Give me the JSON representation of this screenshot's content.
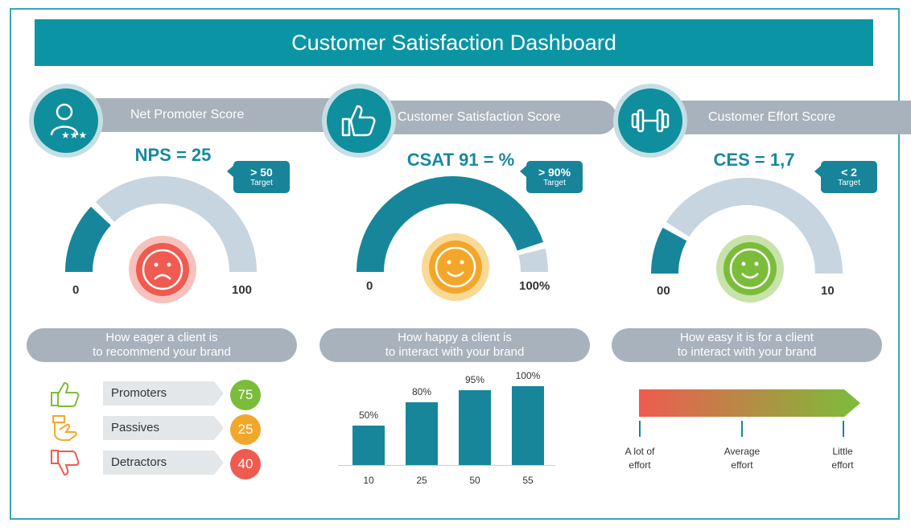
{
  "title": "Customer Satisfaction Dashboard",
  "panels": {
    "nps": {
      "header": "Net Promoter Score",
      "score": "NPS = 25",
      "target_value": "> 50",
      "target_label": "Target",
      "min": "0",
      "max": "100",
      "desc_line1": "How eager a client is",
      "desc_line2": "to recommend your brand",
      "icon": "user-rating-icon",
      "face": "sad-face-icon",
      "face_color": "#ef5b50",
      "gauge_fill_fraction": 0.25,
      "gauge_fill_color": "#17869b",
      "gauge_track_color": "#c7d5e0"
    },
    "csat": {
      "header": "Customer Satisfaction Score",
      "score": "CSAT 91 = %",
      "target_value": "> 90%",
      "target_label": "Target",
      "min": "0",
      "max": "100%",
      "desc_line1": "How happy a client is",
      "desc_line2": "to interact with your brand",
      "icon": "thumbs-up-icon",
      "face": "happy-face-icon",
      "face_color": "#f3a72a",
      "gauge_fill_fraction": 0.91
    },
    "ces": {
      "header": "Customer Effort Score",
      "score": "CES = 1,7",
      "target_value": "< 2",
      "target_label": "Target",
      "min": "00",
      "max": "10",
      "desc_line1": "How easy it is for a client",
      "desc_line2": "to interact with your brand",
      "icon": "dumbbell-icon",
      "face": "happy-face-icon",
      "face_color": "#7bbd3a",
      "gauge_fill_fraction": 0.17
    }
  },
  "nps_breakdown": [
    {
      "label": "Promoters",
      "value": "75",
      "color": "#7bbd3a",
      "icon": "thumbs-up-outline-icon",
      "icon_color": "#7bbd3a"
    },
    {
      "label": "Passives",
      "value": "25",
      "color": "#f3a72a",
      "icon": "thumb-sideways-outline-icon",
      "icon_color": "#f3a72a"
    },
    {
      "label": "Detractors",
      "value": "40",
      "color": "#ef5b50",
      "icon": "thumbs-down-outline-icon",
      "icon_color": "#ef5b50"
    }
  ],
  "chart_data": {
    "type": "bar",
    "categories": [
      "10",
      "25",
      "50",
      "55"
    ],
    "values": [
      50,
      80,
      95,
      100
    ],
    "value_labels": [
      "50%",
      "80%",
      "95%",
      "100%"
    ],
    "ylim": [
      0,
      100
    ],
    "grid": false,
    "color": "#17869b"
  },
  "effort_scale": {
    "labels": [
      {
        "line1": "A lot of",
        "line2": "effort"
      },
      {
        "line1": "Average",
        "line2": "effort"
      },
      {
        "line1": "Little",
        "line2": "effort"
      }
    ],
    "gradient_from": "#ef5b50",
    "gradient_to": "#7bbd3a"
  }
}
